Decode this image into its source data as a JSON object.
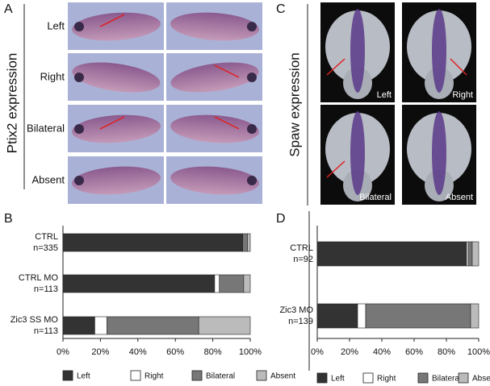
{
  "panel_a": {
    "letter": "A",
    "title": "Ptix2 expression",
    "rows": [
      "Left",
      "Right",
      "Bilateral",
      "Absent"
    ]
  },
  "panel_c": {
    "letter": "C",
    "title": "Spaw expression",
    "labels": [
      "Left",
      "Right",
      "Bilateral",
      "Absent"
    ]
  },
  "chart_data": [
    {
      "type": "stacked_bar_horizontal",
      "panel": "B",
      "categories": [
        "CTRL",
        "CTRL MO",
        "Zic3 SS MO"
      ],
      "counts": [
        "n=335",
        "n=113",
        "n=113"
      ],
      "series": [
        {
          "name": "Left",
          "color": "#333333",
          "values": [
            96,
            81,
            17
          ]
        },
        {
          "name": "Right",
          "color": "#ffffff",
          "values": [
            0,
            2.5,
            6.5
          ]
        },
        {
          "name": "Bilateral",
          "color": "#777777",
          "values": [
            2.5,
            13,
            49
          ]
        },
        {
          "name": "Absent",
          "color": "#bbbbbb",
          "values": [
            1.5,
            3.5,
            27.5
          ]
        }
      ],
      "xlim": [
        0,
        100
      ],
      "xticks": [
        {
          "value": 0,
          "label": "0%"
        },
        {
          "value": 20,
          "label": "20%"
        },
        {
          "value": 40,
          "label": "40%"
        },
        {
          "value": 60,
          "label": "60%"
        },
        {
          "value": 80,
          "label": "80%"
        },
        {
          "value": 100,
          "label": "100%"
        }
      ]
    },
    {
      "type": "stacked_bar_horizontal",
      "panel": "D",
      "categories": [
        "CTRL",
        "Zic3 MO"
      ],
      "counts": [
        "n=92",
        "n=139"
      ],
      "series": [
        {
          "name": "Left",
          "color": "#333333",
          "values": [
            92.5,
            25
          ]
        },
        {
          "name": "Right",
          "color": "#ffffff",
          "values": [
            1,
            5
          ]
        },
        {
          "name": "Bilateral",
          "color": "#777777",
          "values": [
            2.5,
            65
          ]
        },
        {
          "name": "Absent",
          "color": "#bbbbbb",
          "values": [
            4,
            5
          ]
        }
      ],
      "xlim": [
        0,
        100
      ],
      "xticks": [
        {
          "value": 0,
          "label": "0%"
        },
        {
          "value": 20,
          "label": "20%"
        },
        {
          "value": 40,
          "label": "40%"
        },
        {
          "value": 60,
          "label": "60%"
        },
        {
          "value": 80,
          "label": "80%"
        },
        {
          "value": 100,
          "label": "100%"
        }
      ]
    }
  ]
}
